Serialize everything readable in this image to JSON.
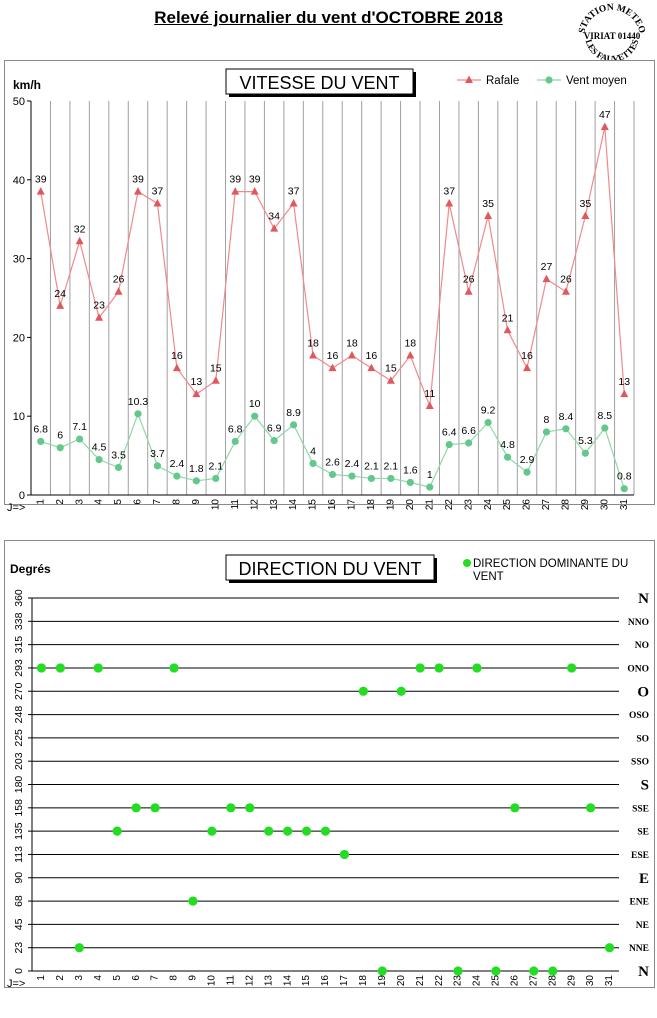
{
  "page": {
    "title": "Relevé journalier du vent d'OCTOBRE 2018",
    "stamp": {
      "top": "STATION METEO",
      "middle": "VIRIAT 01440",
      "bottom": "LES FAUVETTES"
    }
  },
  "colors": {
    "gust": "#e0585c",
    "gust_line": "#f08a8a",
    "mean": "#64c88c",
    "mean_line": "#90d8a8",
    "dir_dot": "#22dd22"
  },
  "chart_data": [
    {
      "type": "line",
      "title": "VITESSE DU VENT",
      "ylabel": "km/h",
      "xlabel": "J=>",
      "ylim": [
        0,
        50
      ],
      "yticks": [
        0,
        10,
        20,
        30,
        40,
        50
      ],
      "grid": "vertical",
      "legend_position": "top-right",
      "x": [
        1,
        2,
        3,
        4,
        5,
        6,
        7,
        8,
        9,
        10,
        11,
        12,
        13,
        14,
        15,
        16,
        17,
        18,
        19,
        20,
        21,
        22,
        23,
        24,
        25,
        26,
        27,
        28,
        29,
        30,
        31
      ],
      "series": [
        {
          "name": "Rafale",
          "marker": "triangle",
          "values": [
            38.5,
            24,
            32.2,
            22.5,
            25.8,
            38.5,
            37,
            16.1,
            12.8,
            14.5,
            38.5,
            38.5,
            33.8,
            37,
            17.7,
            16.1,
            17.7,
            16.1,
            14.5,
            17.7,
            11.3,
            37,
            25.8,
            35.4,
            20.9,
            16.1,
            27.4,
            25.8,
            35.4,
            46.7,
            12.8
          ],
          "labels": [
            "39",
            "24",
            "32",
            "23",
            "26",
            "39",
            "37",
            "16",
            "13",
            "15",
            "39",
            "39",
            "34",
            "37",
            "18",
            "16",
            "18",
            "16",
            "15",
            "18",
            "11",
            "37",
            "26",
            "35",
            "21",
            "16",
            "27",
            "26",
            "35",
            "47",
            "13"
          ]
        },
        {
          "name": "Vent moyen",
          "marker": "circle",
          "values": [
            6.8,
            6,
            7.1,
            4.5,
            3.5,
            10.3,
            3.7,
            2.4,
            1.8,
            2.1,
            6.8,
            10,
            6.9,
            8.9,
            4,
            2.6,
            2.4,
            2.1,
            2.1,
            1.6,
            1,
            6.4,
            6.6,
            9.2,
            4.8,
            2.9,
            8,
            8.4,
            5.3,
            8.5,
            0.8
          ],
          "labels": [
            "6.8",
            "6",
            "7.1",
            "4.5",
            "3.5",
            "10.3",
            "3.7",
            "2.4",
            "1.8",
            "2.1",
            "6.8",
            "10",
            "6.9",
            "8.9",
            "4",
            "2.6",
            "2.4",
            "2.1",
            "2.1",
            "1.6",
            "1",
            "6.4",
            "6.6",
            "9.2",
            "4.8",
            "2.9",
            "8",
            "8.4",
            "5.3",
            "8.5",
            "0.8"
          ]
        }
      ]
    },
    {
      "type": "scatter",
      "title": "DIRECTION DU VENT",
      "ylabel": "Degrés",
      "xlabel": "J=>",
      "ylim": [
        0,
        360
      ],
      "grid": "horizontal",
      "legend_position": "top-right",
      "yticks": [
        0,
        23,
        45,
        68,
        90,
        113,
        135,
        158,
        180,
        203,
        225,
        248,
        270,
        293,
        315,
        338,
        360
      ],
      "y_right_labels": [
        "N",
        "NNE",
        "NE",
        "ENE",
        "E",
        "ESE",
        "SE",
        "SSE",
        "S",
        "SSO",
        "SO",
        "OSO",
        "O",
        "ONO",
        "NO",
        "NNO",
        "N"
      ],
      "x": [
        1,
        2,
        3,
        4,
        5,
        6,
        7,
        8,
        9,
        10,
        11,
        12,
        13,
        14,
        15,
        16,
        17,
        18,
        19,
        20,
        21,
        22,
        23,
        24,
        25,
        26,
        27,
        28,
        29,
        30,
        31
      ],
      "series": [
        {
          "name": "DIRECTION DOMINANTE DU VENT",
          "values": [
            293,
            293,
            23,
            293,
            135,
            158,
            158,
            293,
            68,
            135,
            158,
            158,
            135,
            135,
            135,
            135,
            113,
            270,
            0,
            270,
            293,
            293,
            0,
            293,
            0,
            158,
            0,
            0,
            293,
            158,
            23
          ]
        }
      ]
    }
  ]
}
